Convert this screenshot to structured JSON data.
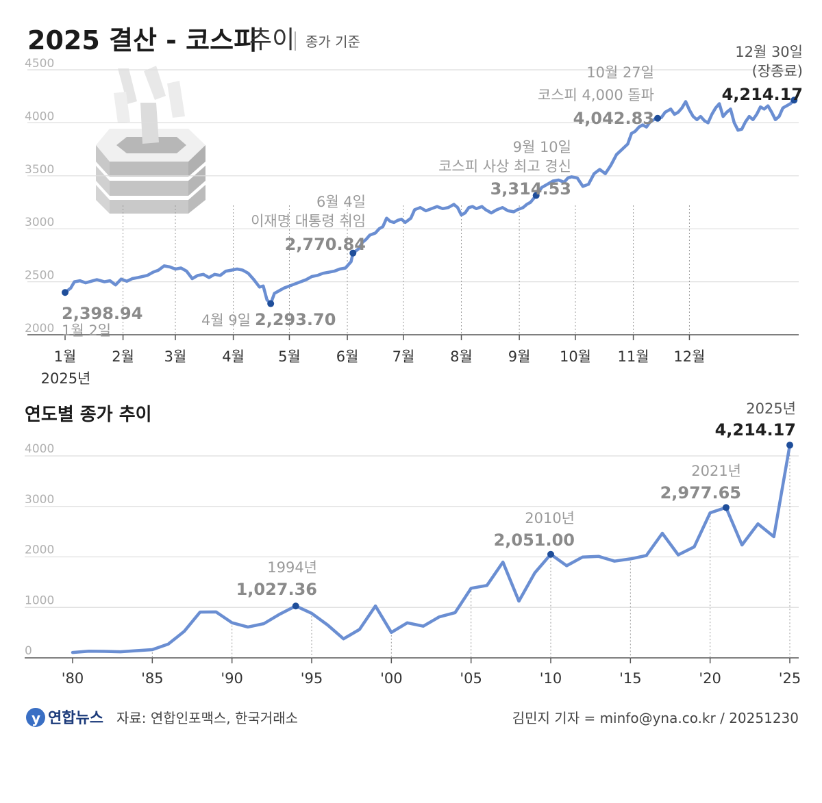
{
  "header": {
    "title_main": "2025 결산 - 코스피",
    "title_sub": "추이",
    "title_note": "종가 기준"
  },
  "colors": {
    "line": "#6a8ed2",
    "marker": "#1f4e9a",
    "grid": "#dedede"
  },
  "chart_data": [
    {
      "type": "line",
      "title": "2025 결산 - 코스피 추이",
      "subtitle": "종가 기준",
      "ylim": [
        2000,
        4500
      ],
      "y_ticks": [
        "2000",
        "2500",
        "3000",
        "3500",
        "4000",
        "4500"
      ],
      "x_ticks": [
        "1월",
        "2월",
        "3월",
        "4월",
        "5월",
        "6월",
        "7월",
        "8월",
        "9월",
        "10월",
        "11월",
        "12월"
      ],
      "x_year_label": "2025년",
      "grid": true,
      "series": [
        {
          "name": "코스피 종가",
          "points": [
            [
              1,
              2398.94
            ],
            [
              4,
              2440
            ],
            [
              6,
              2500
            ],
            [
              9,
              2510
            ],
            [
              12,
              2490
            ],
            [
              15,
              2505
            ],
            [
              18,
              2520
            ],
            [
              22,
              2500
            ],
            [
              25,
              2510
            ],
            [
              28,
              2470
            ],
            [
              31,
              2525
            ],
            [
              34,
              2505
            ],
            [
              37,
              2530
            ],
            [
              40,
              2540
            ],
            [
              45,
              2560
            ],
            [
              48,
              2590
            ],
            [
              51,
              2610
            ],
            [
              54,
              2650
            ],
            [
              57,
              2640
            ],
            [
              60,
              2620
            ],
            [
              63,
              2630
            ],
            [
              66,
              2600
            ],
            [
              69,
              2530
            ],
            [
              72,
              2560
            ],
            [
              75,
              2570
            ],
            [
              78,
              2540
            ],
            [
              81,
              2570
            ],
            [
              84,
              2560
            ],
            [
              87,
              2600
            ],
            [
              90,
              2610
            ],
            [
              93,
              2620
            ],
            [
              96,
              2610
            ],
            [
              99,
              2580
            ],
            [
              102,
              2520
            ],
            [
              105,
              2450
            ],
            [
              107,
              2460
            ],
            [
              109,
              2330
            ],
            [
              111,
              2293.7
            ],
            [
              113,
              2390
            ],
            [
              115,
              2410
            ],
            [
              118,
              2440
            ],
            [
              121,
              2460
            ],
            [
              124,
              2480
            ],
            [
              127,
              2500
            ],
            [
              130,
              2520
            ],
            [
              133,
              2550
            ],
            [
              136,
              2560
            ],
            [
              139,
              2580
            ],
            [
              142,
              2590
            ],
            [
              145,
              2600
            ],
            [
              148,
              2620
            ],
            [
              151,
              2630
            ],
            [
              154,
              2690
            ],
            [
              155,
              2770.84
            ],
            [
              158,
              2810
            ],
            [
              160,
              2870
            ],
            [
              162,
              2900
            ],
            [
              164,
              2940
            ],
            [
              167,
              2960
            ],
            [
              169,
              3000
            ],
            [
              171,
              3020
            ],
            [
              173,
              3100
            ],
            [
              175,
              3070
            ],
            [
              177,
              3060
            ],
            [
              179,
              3080
            ],
            [
              181,
              3090
            ],
            [
              183,
              3060
            ],
            [
              186,
              3100
            ],
            [
              188,
              3180
            ],
            [
              191,
              3200
            ],
            [
              194,
              3170
            ],
            [
              197,
              3190
            ],
            [
              200,
              3210
            ],
            [
              203,
              3190
            ],
            [
              206,
              3200
            ],
            [
              209,
              3230
            ],
            [
              211,
              3200
            ],
            [
              213,
              3130
            ],
            [
              215,
              3150
            ],
            [
              217,
              3200
            ],
            [
              219,
              3210
            ],
            [
              221,
              3190
            ],
            [
              224,
              3210
            ],
            [
              226,
              3180
            ],
            [
              229,
              3150
            ],
            [
              232,
              3180
            ],
            [
              235,
              3200
            ],
            [
              238,
              3170
            ],
            [
              241,
              3160
            ],
            [
              243,
              3180
            ],
            [
              246,
              3200
            ],
            [
              248,
              3230
            ],
            [
              250,
              3250
            ],
            [
              253,
              3314.53
            ],
            [
              256,
              3390
            ],
            [
              259,
              3420
            ],
            [
              262,
              3450
            ],
            [
              265,
              3460
            ],
            [
              268,
              3440
            ],
            [
              270,
              3480
            ],
            [
              272,
              3490
            ],
            [
              275,
              3480
            ],
            [
              278,
              3400
            ],
            [
              281,
              3420
            ],
            [
              284,
              3520
            ],
            [
              287,
              3560
            ],
            [
              290,
              3520
            ],
            [
              293,
              3600
            ],
            [
              296,
              3700
            ],
            [
              299,
              3750
            ],
            [
              302,
              3800
            ],
            [
              304,
              3900
            ],
            [
              306,
              3920
            ],
            [
              308,
              3960
            ],
            [
              310,
              3980
            ],
            [
              312,
              3960
            ],
            [
              314,
              4010
            ],
            [
              316,
              4030
            ],
            [
              318,
              4042.83
            ],
            [
              320,
              4050
            ],
            [
              322,
              4100
            ],
            [
              325,
              4130
            ],
            [
              327,
              4080
            ],
            [
              329,
              4100
            ],
            [
              331,
              4140
            ],
            [
              333,
              4200
            ],
            [
              335,
              4120
            ],
            [
              337,
              4060
            ],
            [
              339,
              4030
            ],
            [
              341,
              4060
            ],
            [
              343,
              4020
            ],
            [
              345,
              4000
            ],
            [
              347,
              4080
            ],
            [
              349,
              4140
            ],
            [
              351,
              4180
            ],
            [
              353,
              4060
            ],
            [
              355,
              4100
            ],
            [
              357,
              4130
            ],
            [
              359,
              4000
            ],
            [
              361,
              3930
            ],
            [
              363,
              3940
            ],
            [
              365,
              4010
            ],
            [
              367,
              4060
            ],
            [
              369,
              4030
            ],
            [
              371,
              4080
            ],
            [
              373,
              4150
            ],
            [
              375,
              4130
            ],
            [
              377,
              4160
            ],
            [
              379,
              4100
            ],
            [
              381,
              4030
            ],
            [
              383,
              4060
            ],
            [
              385,
              4140
            ],
            [
              387,
              4160
            ],
            [
              389,
              4180
            ],
            [
              391,
              4214.17
            ]
          ]
        }
      ],
      "annotations": [
        {
          "label": "1월 2일",
          "value": "2,398.94"
        },
        {
          "label": "4월 9일",
          "value": "2,293.70"
        },
        {
          "label": "6월 4일",
          "sublabel": "이재명 대통령 취임",
          "value": "2,770.84"
        },
        {
          "label": "9월 10일",
          "sublabel": "코스피 사상 최고 경신",
          "value": "3,314.53"
        },
        {
          "label": "10월 27일",
          "sublabel": "코스피 4,000 돌파",
          "value": "4,042.83"
        },
        {
          "label": "12월 30일",
          "sublabel": "(장종료)",
          "value": "4,214.17"
        }
      ]
    },
    {
      "type": "line",
      "title": "연도별 종가 추이",
      "ylim": [
        0,
        4000
      ],
      "y_ticks": [
        "0",
        "1000",
        "2000",
        "3000",
        "4000"
      ],
      "x_ticks": [
        "'80",
        "'85",
        "'90",
        "'95",
        "'00",
        "'05",
        "'10",
        "'15",
        "'20",
        "'25"
      ],
      "x_tick_years": [
        1980,
        1985,
        1990,
        1995,
        2000,
        2005,
        2010,
        2015,
        2020,
        2025
      ],
      "grid": true,
      "series": [
        {
          "name": "연도별 종가",
          "x": [
            1980,
            1981,
            1982,
            1983,
            1984,
            1985,
            1986,
            1987,
            1988,
            1989,
            1990,
            1991,
            1992,
            1993,
            1994,
            1995,
            1996,
            1997,
            1998,
            1999,
            2000,
            2001,
            2002,
            2003,
            2004,
            2005,
            2006,
            2007,
            2008,
            2009,
            2010,
            2011,
            2012,
            2013,
            2014,
            2015,
            2016,
            2017,
            2018,
            2019,
            2020,
            2021,
            2022,
            2023,
            2024,
            2025
          ],
          "values": [
            106.87,
            131.3,
            128.99,
            121.21,
            142.46,
            163.37,
            272.61,
            525.11,
            907.2,
            909.72,
            696.11,
            610.92,
            678.44,
            866.18,
            1027.36,
            882.94,
            651.22,
            376.31,
            562.46,
            1028.07,
            504.62,
            693.7,
            627.55,
            810.71,
            895.92,
            1379.37,
            1434.46,
            1897.13,
            1124.47,
            1682.77,
            2051.0,
            1825.74,
            1997.05,
            2011.34,
            1915.59,
            1961.31,
            2026.46,
            2467.49,
            2041.04,
            2197.67,
            2873.47,
            2977.65,
            2236.4,
            2655.28,
            2399.49,
            4214.17
          ]
        }
      ],
      "annotations": [
        {
          "label": "1994년",
          "value": "1,027.36"
        },
        {
          "label": "2010년",
          "value": "2,051.00"
        },
        {
          "label": "2021년",
          "value": "2,977.65"
        },
        {
          "label": "2025년",
          "value": "4,214.17"
        }
      ]
    }
  ],
  "footer": {
    "logo": "연합뉴스",
    "source": "자료: 연합인포맥스, 한국거래소",
    "credit": "김민지 기자 = minfo@yna.co.kr / 20251230"
  }
}
